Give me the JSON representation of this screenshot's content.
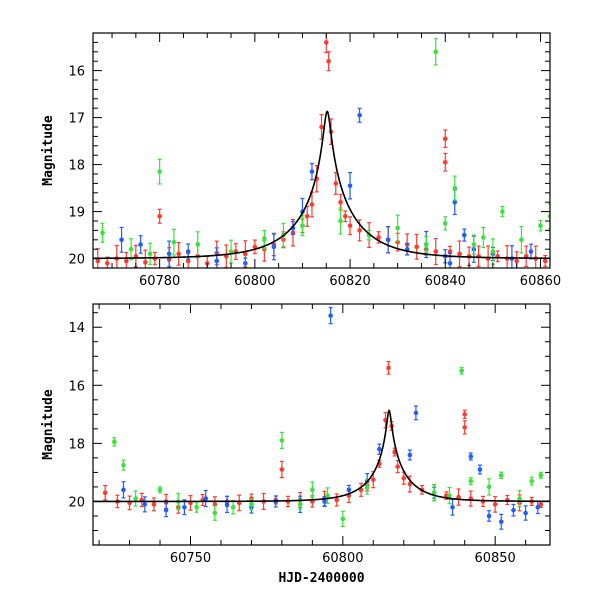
{
  "chart_data": [
    {
      "type": "scatter",
      "panel": "top",
      "title": "",
      "xlabel": "",
      "ylabel": "Magnitude",
      "xlim": [
        60766,
        60862
      ],
      "ylim": [
        20.2,
        15.2
      ],
      "y_inverted": true,
      "x_ticks": [
        60780,
        60800,
        60820,
        60840,
        60860
      ],
      "y_ticks": [
        16,
        17,
        18,
        19,
        20
      ],
      "x_tick_labels": [
        "60780",
        "60800",
        "60820",
        "60840",
        "60860"
      ],
      "y_tick_labels": [
        "16",
        "17",
        "18",
        "19",
        "20"
      ],
      "grid": false,
      "legend": "none",
      "model": {
        "baseline": 20.0,
        "t0": 60815.2,
        "u0": 0.056,
        "tE": 12.0
      },
      "series": [
        {
          "color": "#ff3b30",
          "points": [
            [
              60767,
              20.05
            ],
            [
              60769,
              20.1
            ],
            [
              60771,
              20.0
            ],
            [
              60773,
              20.05
            ],
            [
              60775,
              19.95
            ],
            [
              60777,
              20.08
            ],
            [
              60779,
              20.0
            ],
            [
              60780,
              19.1
            ],
            [
              60782,
              20.02
            ],
            [
              60784,
              19.9
            ],
            [
              60786,
              20.05
            ],
            [
              60788,
              19.95
            ],
            [
              60790,
              20.1
            ],
            [
              60792,
              19.88
            ],
            [
              60794,
              19.95
            ],
            [
              60796,
              19.85
            ],
            [
              60798,
              19.9
            ],
            [
              60800,
              19.75
            ],
            [
              60802,
              19.8
            ],
            [
              60804,
              19.7
            ],
            [
              60806,
              19.6
            ],
            [
              60808,
              19.45
            ],
            [
              60810,
              19.3
            ],
            [
              60811,
              19.1
            ],
            [
              60812,
              18.85
            ],
            [
              60813,
              18.3
            ],
            [
              60814,
              17.2
            ],
            [
              60815,
              15.4
            ],
            [
              60815.5,
              15.8
            ],
            [
              60816,
              17.3
            ],
            [
              60817,
              18.4
            ],
            [
              60818,
              18.8
            ],
            [
              60819,
              19.1
            ],
            [
              60820,
              19.3
            ],
            [
              60822,
              19.4
            ],
            [
              60824,
              19.5
            ],
            [
              60826,
              19.55
            ],
            [
              60828,
              19.6
            ],
            [
              60830,
              19.65
            ],
            [
              60832,
              19.7
            ],
            [
              60834,
              19.75
            ],
            [
              60836,
              19.8
            ],
            [
              60838,
              19.85
            ],
            [
              60840,
              17.45
            ],
            [
              60840,
              17.95
            ],
            [
              60841,
              19.85
            ],
            [
              60843,
              19.9
            ],
            [
              60845,
              19.95
            ],
            [
              60847,
              19.95
            ],
            [
              60849,
              20.0
            ],
            [
              60851,
              19.95
            ],
            [
              60853,
              20.0
            ],
            [
              60855,
              20.05
            ],
            [
              60857,
              19.95
            ],
            [
              60859,
              20.0
            ],
            [
              60861,
              20.05
            ]
          ]
        },
        {
          "color": "#1f5fff",
          "points": [
            [
              60772,
              19.6
            ],
            [
              60776,
              19.7
            ],
            [
              60782,
              19.9
            ],
            [
              60786,
              19.85
            ],
            [
              60792,
              20.05
            ],
            [
              60798,
              20.1
            ],
            [
              60804,
              19.75
            ],
            [
              60808,
              19.35
            ],
            [
              60810,
              19.0
            ],
            [
              60812,
              18.15
            ],
            [
              60820,
              18.45
            ],
            [
              60822,
              16.95
            ],
            [
              60828,
              19.6
            ],
            [
              60832,
              19.8
            ],
            [
              60836,
              19.7
            ],
            [
              60840,
              19.95
            ],
            [
              60841,
              20.1
            ],
            [
              60842,
              18.8
            ],
            [
              60844,
              19.5
            ],
            [
              60846,
              19.8
            ],
            [
              60850,
              19.9
            ],
            [
              60854,
              20.0
            ],
            [
              60858,
              19.85
            ]
          ]
        },
        {
          "color": "#39e339",
          "points": [
            [
              60768,
              19.45
            ],
            [
              60774,
              19.8
            ],
            [
              60778,
              19.9
            ],
            [
              60780,
              18.15
            ],
            [
              60783,
              19.65
            ],
            [
              60788,
              19.7
            ],
            [
              60795,
              19.85
            ],
            [
              60802,
              19.6
            ],
            [
              60806,
              19.5
            ],
            [
              60810,
              19.3
            ],
            [
              60818,
              19.2
            ],
            [
              60824,
              19.5
            ],
            [
              60830,
              19.35
            ],
            [
              60836,
              19.7
            ],
            [
              60838,
              15.6
            ],
            [
              60840,
              19.25
            ],
            [
              60842,
              18.5
            ],
            [
              60846,
              19.7
            ],
            [
              60848,
              19.55
            ],
            [
              60850,
              19.85
            ],
            [
              60852,
              19.0
            ],
            [
              60856,
              19.6
            ],
            [
              60860,
              19.3
            ],
            [
              60862,
              19.1
            ]
          ]
        }
      ]
    },
    {
      "type": "scatter",
      "panel": "bottom",
      "title": "",
      "xlabel": "HJD-2400000",
      "ylabel": "Magnitude",
      "xlim": [
        60718,
        60868
      ],
      "ylim": [
        21.5,
        13.2
      ],
      "y_inverted": true,
      "x_ticks": [
        60750,
        60800,
        60850
      ],
      "y_ticks": [
        14,
        16,
        18,
        20
      ],
      "x_tick_labels": [
        "60750",
        "60800",
        "60850"
      ],
      "y_tick_labels": [
        "14",
        "16",
        "18",
        "20"
      ],
      "grid": false,
      "legend": "none",
      "model": {
        "baseline": 20.0,
        "t0": 60815.2,
        "u0": 0.056,
        "tE": 12.0
      },
      "series": [
        {
          "color": "#ff3b30",
          "points": [
            [
              60722,
              19.7
            ],
            [
              60726,
              20.0
            ],
            [
              60730,
              20.05
            ],
            [
              60734,
              19.95
            ],
            [
              60738,
              20.1
            ],
            [
              60742,
              20.0
            ],
            [
              60746,
              20.2
            ],
            [
              60750,
              20.05
            ],
            [
              60754,
              19.95
            ],
            [
              60758,
              20.1
            ],
            [
              60762,
              20.0
            ],
            [
              60766,
              20.05
            ],
            [
              60770,
              19.9
            ],
            [
              60774,
              20.0
            ],
            [
              60778,
              19.95
            ],
            [
              60780,
              18.9
            ],
            [
              60782,
              20.0
            ],
            [
              60786,
              19.95
            ],
            [
              60790,
              20.0
            ],
            [
              60794,
              19.9
            ],
            [
              60798,
              19.95
            ],
            [
              60802,
              19.8
            ],
            [
              60806,
              19.6
            ],
            [
              60808,
              19.45
            ],
            [
              60810,
              19.25
            ],
            [
              60812,
              18.7
            ],
            [
              60814,
              17.2
            ],
            [
              60815,
              15.4
            ],
            [
              60816,
              17.4
            ],
            [
              60817,
              18.3
            ],
            [
              60818,
              18.8
            ],
            [
              60820,
              19.2
            ],
            [
              60822,
              19.4
            ],
            [
              60826,
              19.6
            ],
            [
              60830,
              19.7
            ],
            [
              60834,
              19.8
            ],
            [
              60838,
              19.85
            ],
            [
              60840,
              17.0
            ],
            [
              60840,
              17.45
            ],
            [
              60842,
              19.9
            ],
            [
              60846,
              20.0
            ],
            [
              60850,
              20.1
            ],
            [
              60854,
              19.95
            ],
            [
              60858,
              20.05
            ],
            [
              60862,
              20.0
            ],
            [
              60865,
              20.1
            ]
          ]
        },
        {
          "color": "#1f5fff",
          "points": [
            [
              60728,
              19.6
            ],
            [
              60735,
              20.1
            ],
            [
              60742,
              20.3
            ],
            [
              60748,
              20.2
            ],
            [
              60755,
              19.9
            ],
            [
              60762,
              20.1
            ],
            [
              60770,
              20.2
            ],
            [
              60778,
              20.0
            ],
            [
              60786,
              20.1
            ],
            [
              60794,
              20.0
            ],
            [
              60796,
              13.6
            ],
            [
              60802,
              19.6
            ],
            [
              60808,
              19.3
            ],
            [
              60812,
              18.2
            ],
            [
              60822,
              18.4
            ],
            [
              60824,
              16.95
            ],
            [
              60830,
              19.7
            ],
            [
              60836,
              20.2
            ],
            [
              60842,
              18.45
            ],
            [
              60845,
              18.9
            ],
            [
              60848,
              20.5
            ],
            [
              60852,
              20.7
            ],
            [
              60856,
              20.3
            ],
            [
              60860,
              20.4
            ],
            [
              60864,
              20.2
            ]
          ]
        },
        {
          "color": "#39e339",
          "points": [
            [
              60725,
              17.95
            ],
            [
              60728,
              18.75
            ],
            [
              60732,
              19.9
            ],
            [
              60740,
              19.6
            ],
            [
              60746,
              20.0
            ],
            [
              60752,
              20.2
            ],
            [
              60758,
              20.4
            ],
            [
              60764,
              20.2
            ],
            [
              60770,
              20.1
            ],
            [
              60780,
              17.9
            ],
            [
              60786,
              20.1
            ],
            [
              60790,
              19.6
            ],
            [
              60795,
              19.8
            ],
            [
              60800,
              20.6
            ],
            [
              60808,
              19.5
            ],
            [
              60830,
              19.7
            ],
            [
              60835,
              19.8
            ],
            [
              60839,
              15.5
            ],
            [
              60842,
              19.3
            ],
            [
              60848,
              19.5
            ],
            [
              60852,
              19.1
            ],
            [
              60858,
              19.9
            ],
            [
              60862,
              19.3
            ],
            [
              60865,
              19.1
            ]
          ]
        }
      ]
    }
  ]
}
